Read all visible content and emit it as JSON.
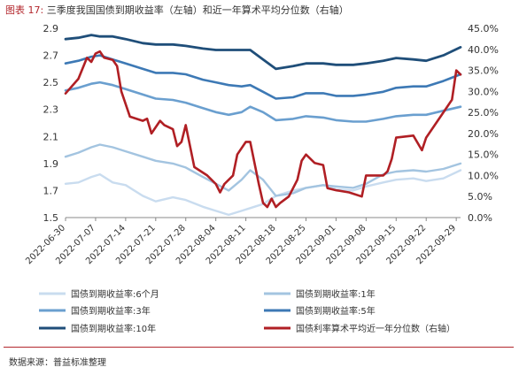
{
  "header": {
    "figure_label": "图表 17:",
    "title": "三季度我国国债到期收益率（左轴）和近一年算术平均分位数（右轴）"
  },
  "footer": {
    "source": "数据来源：普益标准整理"
  },
  "colors": {
    "y6m": "#c9dcef",
    "y1": "#a3c4e0",
    "y3": "#6a9fcf",
    "y5": "#3d79b5",
    "y10": "#1f4e79",
    "pct": "#b01f24"
  },
  "chart_data": {
    "type": "line",
    "title": "三季度我国国债到期收益率（左轴）和近一年算术平均分位数（右轴）",
    "xlabel": "",
    "ylabel": "",
    "x_range": [
      "2022-06-30",
      "2022-09-30"
    ],
    "x_ticks": [
      "2022-06-30",
      "2022-07-07",
      "2022-07-14",
      "2022-07-21",
      "2022-07-28",
      "2022-08-04",
      "2022-08-11",
      "2022-08-18",
      "2022-08-25",
      "2022-09-01",
      "2022-09-08",
      "2022-09-15",
      "2022-09-22",
      "2022-09-29"
    ],
    "y_left": {
      "min": 1.5,
      "max": 2.9,
      "ticks": [
        "1.5",
        "1.7",
        "1.9",
        "2.1",
        "2.3",
        "2.5",
        "2.7",
        "2.9"
      ]
    },
    "y_right": {
      "min": 0,
      "max": 45,
      "ticks": [
        "0.0%",
        "5.0%",
        "10.0%",
        "15.0%",
        "20.0%",
        "25.0%",
        "30.0%",
        "35.0%",
        "40.0%",
        "45.0%"
      ]
    },
    "grid": false,
    "legend_position": "bottom",
    "series": [
      {
        "key": "y6m",
        "name": "国债到期收益率:6个月",
        "axis": "left",
        "points": [
          [
            "2022-06-30",
            1.75
          ],
          [
            "2022-07-03",
            1.76
          ],
          [
            "2022-07-06",
            1.8
          ],
          [
            "2022-07-08",
            1.82
          ],
          [
            "2022-07-11",
            1.76
          ],
          [
            "2022-07-14",
            1.74
          ],
          [
            "2022-07-18",
            1.66
          ],
          [
            "2022-07-21",
            1.62
          ],
          [
            "2022-07-25",
            1.65
          ],
          [
            "2022-07-28",
            1.63
          ],
          [
            "2022-08-01",
            1.58
          ],
          [
            "2022-08-04",
            1.55
          ],
          [
            "2022-08-07",
            1.52
          ],
          [
            "2022-08-10",
            1.55
          ],
          [
            "2022-08-12",
            1.57
          ],
          [
            "2022-08-15",
            1.6
          ],
          [
            "2022-08-18",
            1.66
          ],
          [
            "2022-08-22",
            1.7
          ],
          [
            "2022-08-25",
            1.72
          ],
          [
            "2022-08-29",
            1.74
          ],
          [
            "2022-09-01",
            1.71
          ],
          [
            "2022-09-05",
            1.7
          ],
          [
            "2022-09-08",
            1.73
          ],
          [
            "2022-09-12",
            1.76
          ],
          [
            "2022-09-15",
            1.78
          ],
          [
            "2022-09-19",
            1.79
          ],
          [
            "2022-09-22",
            1.77
          ],
          [
            "2022-09-26",
            1.79
          ],
          [
            "2022-09-30",
            1.85
          ]
        ]
      },
      {
        "key": "y1",
        "name": "国债到期收益率:1年",
        "axis": "left",
        "points": [
          [
            "2022-06-30",
            1.95
          ],
          [
            "2022-07-03",
            1.98
          ],
          [
            "2022-07-06",
            2.02
          ],
          [
            "2022-07-08",
            2.04
          ],
          [
            "2022-07-11",
            2.02
          ],
          [
            "2022-07-14",
            1.99
          ],
          [
            "2022-07-18",
            1.95
          ],
          [
            "2022-07-21",
            1.92
          ],
          [
            "2022-07-25",
            1.9
          ],
          [
            "2022-07-28",
            1.87
          ],
          [
            "2022-08-01",
            1.8
          ],
          [
            "2022-08-04",
            1.75
          ],
          [
            "2022-08-07",
            1.7
          ],
          [
            "2022-08-10",
            1.78
          ],
          [
            "2022-08-12",
            1.85
          ],
          [
            "2022-08-15",
            1.78
          ],
          [
            "2022-08-18",
            1.66
          ],
          [
            "2022-08-22",
            1.68
          ],
          [
            "2022-08-25",
            1.72
          ],
          [
            "2022-08-29",
            1.74
          ],
          [
            "2022-09-01",
            1.73
          ],
          [
            "2022-09-05",
            1.72
          ],
          [
            "2022-09-08",
            1.75
          ],
          [
            "2022-09-12",
            1.82
          ],
          [
            "2022-09-15",
            1.84
          ],
          [
            "2022-09-19",
            1.85
          ],
          [
            "2022-09-22",
            1.84
          ],
          [
            "2022-09-26",
            1.86
          ],
          [
            "2022-09-30",
            1.9
          ]
        ]
      },
      {
        "key": "y3",
        "name": "国债到期收益率:3年",
        "axis": "left",
        "points": [
          [
            "2022-06-30",
            2.44
          ],
          [
            "2022-07-03",
            2.46
          ],
          [
            "2022-07-06",
            2.49
          ],
          [
            "2022-07-08",
            2.5
          ],
          [
            "2022-07-11",
            2.48
          ],
          [
            "2022-07-14",
            2.45
          ],
          [
            "2022-07-18",
            2.41
          ],
          [
            "2022-07-21",
            2.38
          ],
          [
            "2022-07-25",
            2.37
          ],
          [
            "2022-07-28",
            2.35
          ],
          [
            "2022-08-01",
            2.31
          ],
          [
            "2022-08-04",
            2.28
          ],
          [
            "2022-08-07",
            2.26
          ],
          [
            "2022-08-10",
            2.28
          ],
          [
            "2022-08-12",
            2.32
          ],
          [
            "2022-08-15",
            2.28
          ],
          [
            "2022-08-18",
            2.22
          ],
          [
            "2022-08-22",
            2.23
          ],
          [
            "2022-08-25",
            2.25
          ],
          [
            "2022-08-29",
            2.24
          ],
          [
            "2022-09-01",
            2.22
          ],
          [
            "2022-09-05",
            2.21
          ],
          [
            "2022-09-08",
            2.21
          ],
          [
            "2022-09-12",
            2.23
          ],
          [
            "2022-09-15",
            2.25
          ],
          [
            "2022-09-19",
            2.26
          ],
          [
            "2022-09-22",
            2.26
          ],
          [
            "2022-09-26",
            2.29
          ],
          [
            "2022-09-30",
            2.32
          ]
        ]
      },
      {
        "key": "y5",
        "name": "国债到期收益率:5年",
        "axis": "left",
        "points": [
          [
            "2022-06-30",
            2.64
          ],
          [
            "2022-07-03",
            2.66
          ],
          [
            "2022-07-06",
            2.69
          ],
          [
            "2022-07-08",
            2.7
          ],
          [
            "2022-07-11",
            2.67
          ],
          [
            "2022-07-14",
            2.64
          ],
          [
            "2022-07-18",
            2.6
          ],
          [
            "2022-07-21",
            2.57
          ],
          [
            "2022-07-25",
            2.57
          ],
          [
            "2022-07-28",
            2.56
          ],
          [
            "2022-08-01",
            2.52
          ],
          [
            "2022-08-04",
            2.5
          ],
          [
            "2022-08-07",
            2.48
          ],
          [
            "2022-08-10",
            2.47
          ],
          [
            "2022-08-12",
            2.48
          ],
          [
            "2022-08-15",
            2.43
          ],
          [
            "2022-08-18",
            2.38
          ],
          [
            "2022-08-22",
            2.39
          ],
          [
            "2022-08-25",
            2.42
          ],
          [
            "2022-08-29",
            2.42
          ],
          [
            "2022-09-01",
            2.4
          ],
          [
            "2022-09-05",
            2.4
          ],
          [
            "2022-09-08",
            2.41
          ],
          [
            "2022-09-12",
            2.43
          ],
          [
            "2022-09-15",
            2.46
          ],
          [
            "2022-09-19",
            2.47
          ],
          [
            "2022-09-22",
            2.47
          ],
          [
            "2022-09-26",
            2.51
          ],
          [
            "2022-09-30",
            2.56
          ]
        ]
      },
      {
        "key": "y10",
        "name": "国债到期收益率:10年",
        "axis": "left",
        "points": [
          [
            "2022-06-30",
            2.82
          ],
          [
            "2022-07-03",
            2.83
          ],
          [
            "2022-07-06",
            2.85
          ],
          [
            "2022-07-08",
            2.84
          ],
          [
            "2022-07-11",
            2.84
          ],
          [
            "2022-07-14",
            2.82
          ],
          [
            "2022-07-18",
            2.79
          ],
          [
            "2022-07-21",
            2.78
          ],
          [
            "2022-07-25",
            2.78
          ],
          [
            "2022-07-28",
            2.77
          ],
          [
            "2022-08-01",
            2.75
          ],
          [
            "2022-08-04",
            2.74
          ],
          [
            "2022-08-07",
            2.74
          ],
          [
            "2022-08-10",
            2.74
          ],
          [
            "2022-08-12",
            2.74
          ],
          [
            "2022-08-15",
            2.67
          ],
          [
            "2022-08-18",
            2.6
          ],
          [
            "2022-08-22",
            2.62
          ],
          [
            "2022-08-25",
            2.64
          ],
          [
            "2022-08-29",
            2.64
          ],
          [
            "2022-09-01",
            2.63
          ],
          [
            "2022-09-05",
            2.63
          ],
          [
            "2022-09-08",
            2.64
          ],
          [
            "2022-09-12",
            2.66
          ],
          [
            "2022-09-15",
            2.68
          ],
          [
            "2022-09-19",
            2.67
          ],
          [
            "2022-09-22",
            2.66
          ],
          [
            "2022-09-26",
            2.7
          ],
          [
            "2022-09-30",
            2.76
          ]
        ]
      },
      {
        "key": "pct",
        "name": "国债利率算术平均近一年分位数（右轴）",
        "axis": "right",
        "points": [
          [
            "2022-06-30",
            29.5
          ],
          [
            "2022-07-03",
            33.0
          ],
          [
            "2022-07-05",
            38.0
          ],
          [
            "2022-07-06",
            37.0
          ],
          [
            "2022-07-07",
            39.0
          ],
          [
            "2022-07-08",
            39.5
          ],
          [
            "2022-07-09",
            38.0
          ],
          [
            "2022-07-11",
            37.5
          ],
          [
            "2022-07-12",
            36.0
          ],
          [
            "2022-07-13",
            30.0
          ],
          [
            "2022-07-15",
            24.0
          ],
          [
            "2022-07-18",
            23.0
          ],
          [
            "2022-07-19",
            23.5
          ],
          [
            "2022-07-20",
            20.0
          ],
          [
            "2022-07-22",
            23.0
          ],
          [
            "2022-07-23",
            22.0
          ],
          [
            "2022-07-25",
            21.0
          ],
          [
            "2022-07-26",
            17.0
          ],
          [
            "2022-07-27",
            18.0
          ],
          [
            "2022-07-28",
            22.0
          ],
          [
            "2022-07-30",
            12.0
          ],
          [
            "2022-08-02",
            10.0
          ],
          [
            "2022-08-04",
            8.0
          ],
          [
            "2022-08-05",
            6.0
          ],
          [
            "2022-08-06",
            8.0
          ],
          [
            "2022-08-08",
            10.0
          ],
          [
            "2022-08-09",
            15.0
          ],
          [
            "2022-08-11",
            18.0
          ],
          [
            "2022-08-12",
            18.0
          ],
          [
            "2022-08-14",
            8.0
          ],
          [
            "2022-08-15",
            3.5
          ],
          [
            "2022-08-16",
            2.5
          ],
          [
            "2022-08-17",
            4.5
          ],
          [
            "2022-08-18",
            2.5
          ],
          [
            "2022-08-19",
            3.5
          ],
          [
            "2022-08-21",
            5.0
          ],
          [
            "2022-08-23",
            9.0
          ],
          [
            "2022-08-24",
            13.5
          ],
          [
            "2022-08-25",
            15.0
          ],
          [
            "2022-08-27",
            13.0
          ],
          [
            "2022-08-29",
            12.5
          ],
          [
            "2022-08-30",
            7.0
          ],
          [
            "2022-09-01",
            6.5
          ],
          [
            "2022-09-04",
            6.0
          ],
          [
            "2022-09-07",
            5.0
          ],
          [
            "2022-09-08",
            10.0
          ],
          [
            "2022-09-12",
            10.0
          ],
          [
            "2022-09-13",
            11.0
          ],
          [
            "2022-09-14",
            14.0
          ],
          [
            "2022-09-15",
            19.0
          ],
          [
            "2022-09-19",
            19.5
          ],
          [
            "2022-09-21",
            16.0
          ],
          [
            "2022-09-22",
            19.0
          ],
          [
            "2022-09-24",
            22.0
          ],
          [
            "2022-09-26",
            25.0
          ],
          [
            "2022-09-28",
            28.0
          ],
          [
            "2022-09-29",
            35.0
          ],
          [
            "2022-09-30",
            34.0
          ]
        ]
      }
    ]
  }
}
